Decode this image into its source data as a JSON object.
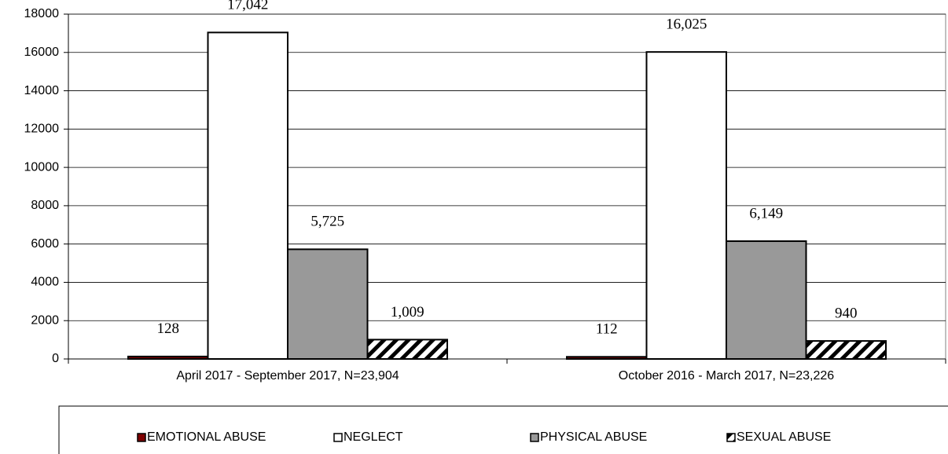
{
  "chart_data": {
    "type": "bar",
    "categories": [
      "April 2017 - September 2017, N=23,904",
      "October 2016 - March 2017, N=23,226"
    ],
    "series": [
      {
        "name": "EMOTIONAL ABUSE",
        "color": "#7f0000",
        "values": [
          128,
          112
        ],
        "value_labels": [
          "128",
          "112"
        ]
      },
      {
        "name": "NEGLECT",
        "color": "#ffffff",
        "values": [
          17042,
          16025
        ],
        "value_labels": [
          "17,042",
          "16,025"
        ]
      },
      {
        "name": "PHYSICAL ABUSE",
        "color": "#999999",
        "values": [
          5725,
          6149
        ],
        "value_labels": [
          "5,725",
          "6,149"
        ]
      },
      {
        "name": "SEXUAL ABUSE",
        "color": "#ffffff",
        "pattern": "diagonal-hatch",
        "values": [
          1009,
          940
        ],
        "value_labels": [
          "1,009",
          "940"
        ]
      }
    ],
    "ylim": [
      0,
      18000
    ],
    "yticks": [
      0,
      2000,
      4000,
      6000,
      8000,
      10000,
      12000,
      14000,
      16000,
      18000
    ],
    "grid": true,
    "legend": "bottom"
  }
}
